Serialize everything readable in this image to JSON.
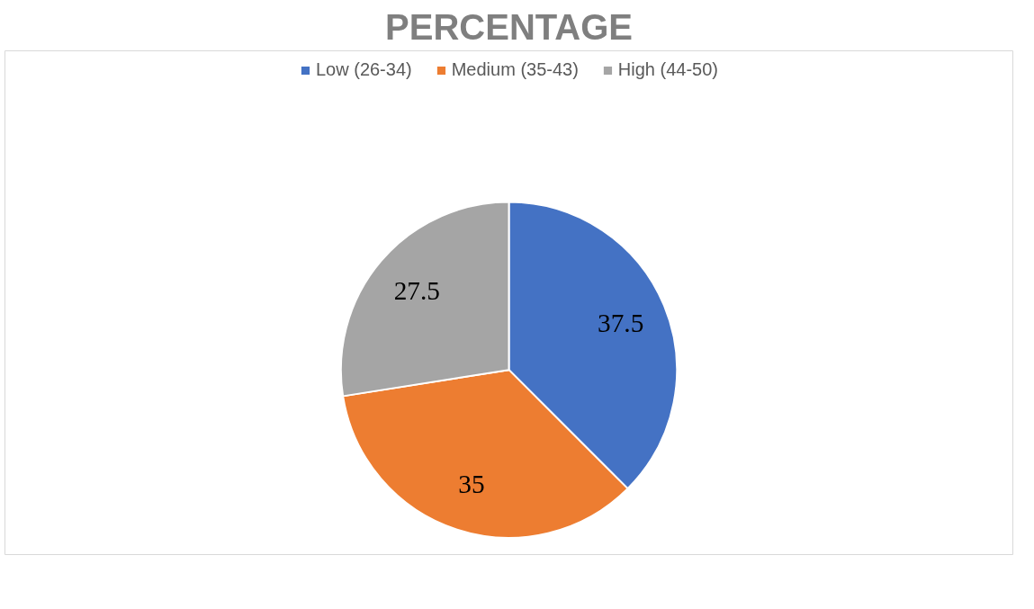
{
  "chart_data": {
    "type": "pie",
    "title": "PERCENTAGE",
    "categories": [
      "Low (26-34)",
      "Medium (35-43)",
      "High (44-50)"
    ],
    "values": [
      37.5,
      35,
      27.5
    ],
    "colors": [
      "#4472c4",
      "#ed7d31",
      "#a5a5a5"
    ],
    "data_labels": true,
    "legend": "top"
  }
}
